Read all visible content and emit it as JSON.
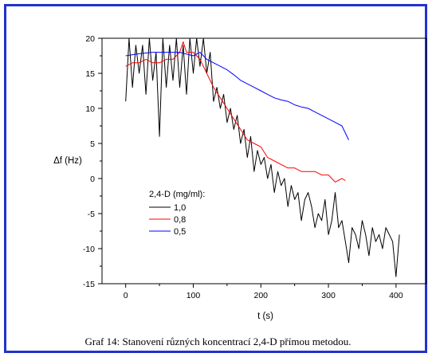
{
  "caption": "Graf 14: Stanovení různých koncentrací 2,4-D přímou metodou.",
  "chart_data": {
    "type": "line",
    "xlabel": "t (s)",
    "ylabel": "Δf (Hz)",
    "xlim": [
      -35,
      445
    ],
    "ylim": [
      -15,
      20
    ],
    "xticks": [
      0,
      100,
      200,
      300,
      400
    ],
    "yticks": [
      -15,
      -10,
      -5,
      0,
      5,
      10,
      15,
      20
    ],
    "legend_title": "2,4-D (mg/ml):",
    "legend_position": "center-left",
    "series": [
      {
        "name": "1,0",
        "color": "#000000",
        "x": [
          0,
          5,
          10,
          15,
          20,
          25,
          30,
          35,
          40,
          45,
          50,
          55,
          60,
          65,
          70,
          75,
          80,
          85,
          90,
          95,
          100,
          105,
          110,
          115,
          120,
          125,
          130,
          135,
          140,
          145,
          150,
          155,
          160,
          165,
          170,
          175,
          180,
          185,
          190,
          195,
          200,
          205,
          210,
          215,
          220,
          225,
          230,
          235,
          240,
          245,
          250,
          255,
          260,
          265,
          270,
          275,
          280,
          285,
          290,
          295,
          300,
          305,
          310,
          315,
          320,
          325,
          330,
          335,
          340,
          345,
          350,
          355,
          360,
          365,
          370,
          375,
          380,
          385,
          390,
          395,
          400,
          405
        ],
        "y": [
          11,
          20,
          13,
          19,
          15,
          19,
          12,
          20,
          14,
          18,
          6,
          20,
          13,
          19,
          14,
          20,
          13,
          19,
          12,
          20,
          15,
          20,
          16,
          20,
          15,
          18,
          11,
          13,
          10,
          12,
          8,
          10,
          7,
          9,
          5,
          7,
          3,
          6,
          1,
          4,
          2,
          3,
          0,
          2,
          -2,
          1,
          -1,
          0,
          -4,
          -1,
          -3,
          -2,
          -6,
          -3,
          -2,
          -4,
          -7,
          -5,
          -6,
          -3,
          -8,
          -6,
          -2,
          -7,
          -6,
          -9,
          -12,
          -7,
          -8,
          -10,
          -6,
          -8,
          -11,
          -7,
          -9,
          -8,
          -10,
          -7,
          -8,
          -9,
          -14,
          -8
        ]
      },
      {
        "name": "0,8",
        "color": "#ff0000",
        "x": [
          0,
          10,
          20,
          30,
          40,
          50,
          60,
          70,
          80,
          85,
          90,
          100,
          110,
          120,
          130,
          140,
          150,
          160,
          170,
          180,
          190,
          200,
          210,
          220,
          230,
          240,
          250,
          260,
          270,
          280,
          290,
          300,
          310,
          320,
          325
        ],
        "y": [
          16,
          16.5,
          16.5,
          17,
          16.5,
          16.5,
          17,
          17,
          18,
          19.5,
          18,
          18,
          17,
          15,
          13,
          11.5,
          10,
          8.5,
          7,
          5.5,
          5,
          4.5,
          3,
          2.5,
          2,
          1.5,
          1.5,
          1,
          1,
          1,
          0.5,
          0.5,
          -0.5,
          0,
          -0.3
        ]
      },
      {
        "name": "0,5",
        "color": "#0000ff",
        "x": [
          0,
          20,
          40,
          60,
          80,
          100,
          110,
          120,
          130,
          140,
          150,
          160,
          170,
          180,
          190,
          200,
          210,
          220,
          230,
          240,
          250,
          260,
          270,
          280,
          290,
          300,
          310,
          320,
          330
        ],
        "y": [
          17.5,
          17.8,
          18,
          18,
          18,
          17.5,
          18,
          17,
          16.5,
          16,
          15.5,
          14.8,
          14,
          13.5,
          13,
          12.5,
          12,
          11.5,
          11.2,
          11,
          10.5,
          10.2,
          10,
          9.5,
          9,
          8.5,
          8,
          7.5,
          5.5
        ]
      }
    ]
  }
}
